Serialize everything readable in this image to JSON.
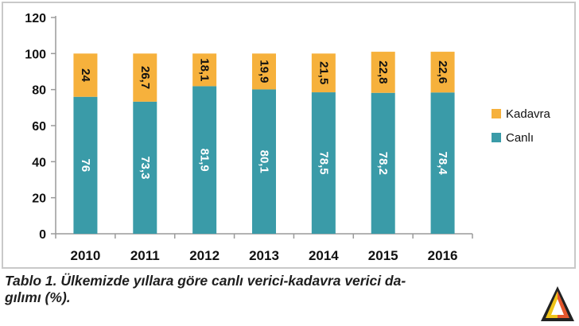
{
  "chart_data": {
    "type": "bar",
    "stacked": true,
    "categories": [
      "2010",
      "2011",
      "2012",
      "2013",
      "2014",
      "2015",
      "2016"
    ],
    "series": [
      {
        "name": "Canlı",
        "color": "#3a9ba8",
        "values": [
          76,
          73.3,
          81.9,
          80.1,
          78.5,
          78.2,
          78.4
        ],
        "labels": [
          "76",
          "73,3",
          "81,9",
          "80,1",
          "78,5",
          "78,2",
          "78,4"
        ]
      },
      {
        "name": "Kadavra",
        "color": "#f6b13c",
        "values": [
          24,
          26.7,
          18.1,
          19.9,
          21.5,
          22.8,
          22.6
        ],
        "labels": [
          "24",
          "26,7",
          "18,1",
          "19,9",
          "21,5",
          "22,8",
          "22,6"
        ]
      }
    ],
    "ylim": [
      0,
      120
    ],
    "yticks": [
      0,
      20,
      40,
      60,
      80,
      100,
      120
    ],
    "grid": false,
    "legend_position": "right",
    "legend_order": [
      "Kadavra",
      "Canlı"
    ],
    "label_rotation": "vertical"
  },
  "caption": "Tablo 1. Ülkemizde yıllara göre canlı verici-kadavra verici da-\ngılımı (%).",
  "colors": {
    "axis": "#9a9a9a",
    "canli": "#3a9ba8",
    "kadavra": "#f6b13c"
  },
  "logo_icon": "corner-logo-icon"
}
